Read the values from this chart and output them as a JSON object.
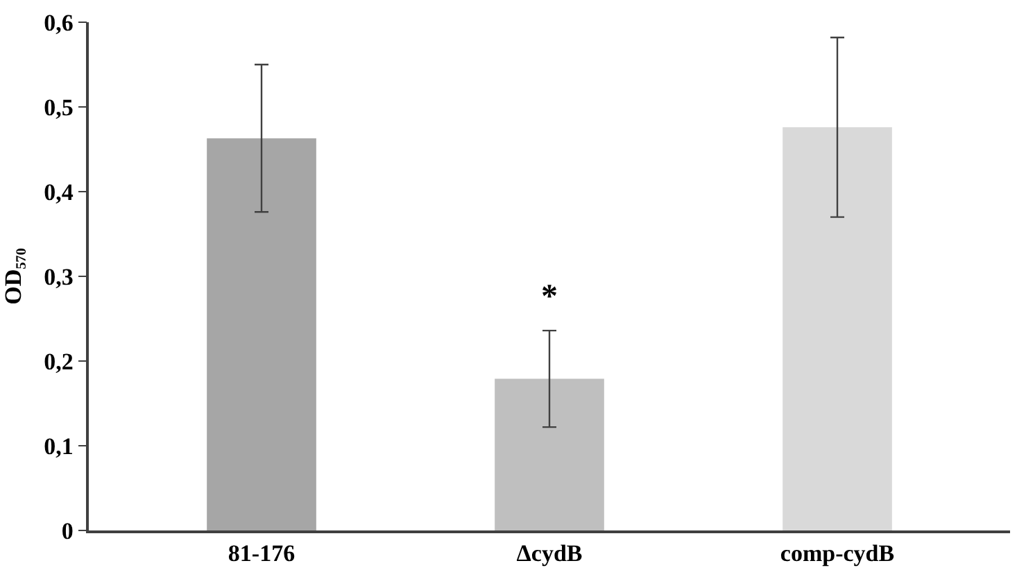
{
  "chart_data": {
    "type": "bar",
    "ylabel": "OD₅₇₀",
    "categories": [
      "81-176",
      "ΔcydB",
      "comp-cydB"
    ],
    "values": [
      0.463,
      0.179,
      0.476
    ],
    "colors": [
      "#a6a6a6",
      "#bfbfbf",
      "#d9d9d9"
    ],
    "errors": [
      0.087,
      0.057,
      0.106
    ],
    "ylim": [
      0,
      0.6
    ],
    "yticks": [
      0,
      {
        "value": 0.1,
        "label": "0,1"
      },
      {
        "value": 0.2,
        "label": "0,2"
      },
      {
        "value": 0.3,
        "label": "0,3"
      },
      {
        "value": 0.4,
        "label": "0,4"
      },
      {
        "value": 0.5,
        "label": "0,5"
      },
      {
        "value": 0.6,
        "label": "0,6"
      }
    ],
    "annotations": [
      "*"
    ],
    "legend": false
  }
}
